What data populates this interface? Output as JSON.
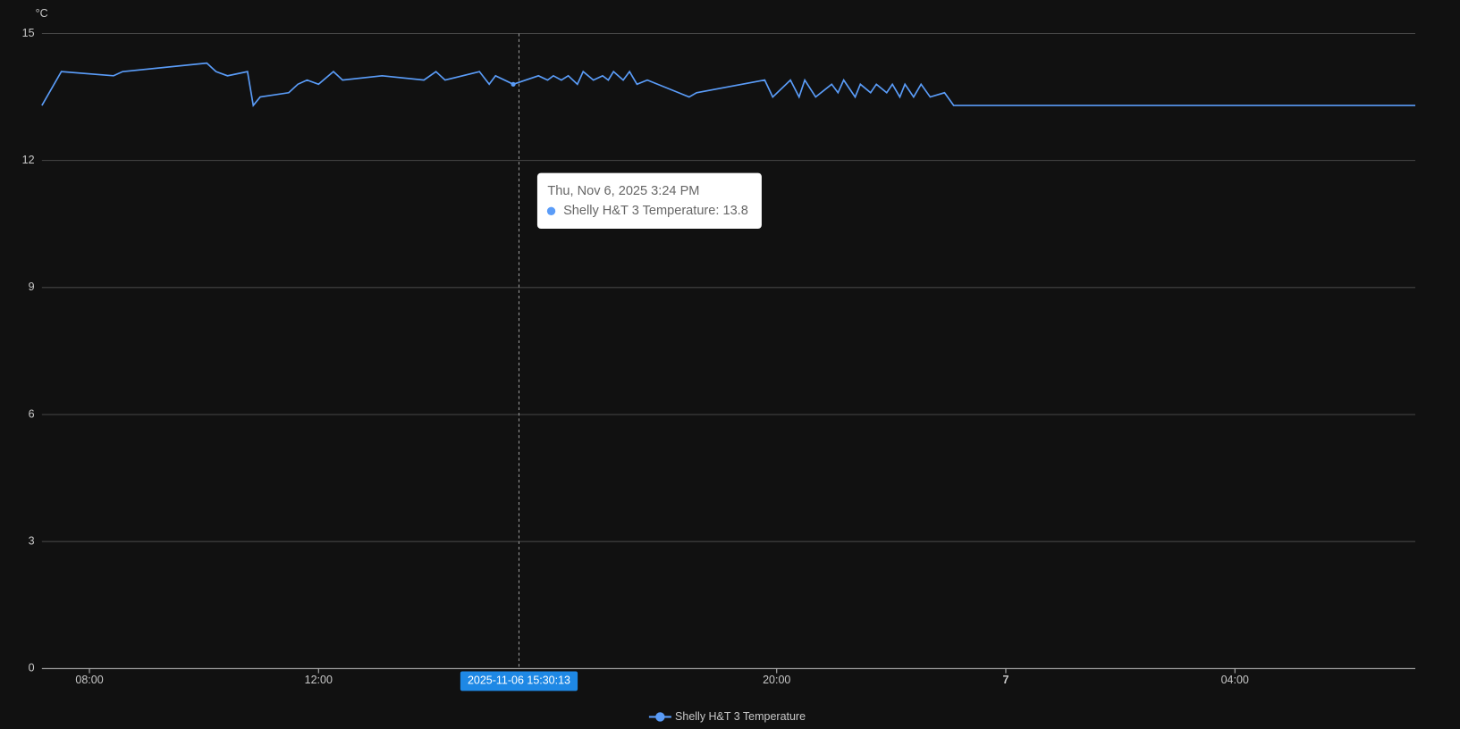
{
  "chart_data": {
    "type": "line",
    "y_unit": "°C",
    "x": [
      7.17,
      7.51,
      8.42,
      8.58,
      10.05,
      10.21,
      10.41,
      10.76,
      10.86,
      10.98,
      11.48,
      11.64,
      11.8,
      12.0,
      12.26,
      12.42,
      13.11,
      13.84,
      14.05,
      14.21,
      14.81,
      14.98,
      15.09,
      15.4,
      15.84,
      16.0,
      16.1,
      16.24,
      16.36,
      16.52,
      16.62,
      16.8,
      16.96,
      17.06,
      17.15,
      17.32,
      17.43,
      17.56,
      17.74,
      18.47,
      18.6,
      19.79,
      19.93,
      20.24,
      20.39,
      20.49,
      20.68,
      20.96,
      21.07,
      21.17,
      21.37,
      21.46,
      21.64,
      21.74,
      21.92,
      22.02,
      22.15,
      22.24,
      22.39,
      22.52,
      22.68,
      22.93,
      23.09,
      31.15
    ],
    "series": [
      {
        "name": "Shelly H&T 3 Temperature",
        "color": "#5a9cf8",
        "values": [
          13.3,
          14.1,
          14.0,
          14.1,
          14.3,
          14.1,
          14.0,
          14.1,
          13.3,
          13.5,
          13.6,
          13.8,
          13.9,
          13.8,
          14.1,
          13.9,
          14.0,
          13.9,
          14.1,
          13.9,
          14.1,
          13.8,
          14.0,
          13.8,
          14.0,
          13.9,
          14.0,
          13.9,
          14.0,
          13.8,
          14.1,
          13.9,
          14.0,
          13.9,
          14.1,
          13.9,
          14.1,
          13.8,
          13.9,
          13.5,
          13.6,
          13.9,
          13.5,
          13.9,
          13.5,
          13.9,
          13.5,
          13.8,
          13.6,
          13.9,
          13.5,
          13.8,
          13.6,
          13.8,
          13.6,
          13.8,
          13.5,
          13.8,
          13.5,
          13.8,
          13.5,
          13.6,
          13.3,
          13.3
        ]
      }
    ],
    "xlim": [
      7.17,
      31.15
    ],
    "xticks": [
      {
        "value": 8,
        "label": "08:00"
      },
      {
        "value": 12,
        "label": "12:00"
      },
      {
        "value": 20,
        "label": "20:00"
      },
      {
        "value": 24,
        "label": "7"
      },
      {
        "value": 28,
        "label": "04:00"
      }
    ],
    "ylim": [
      0,
      15
    ],
    "yticks": [
      0,
      3,
      6,
      9,
      12,
      15
    ],
    "grid": true,
    "legend": "bottom",
    "hover_index": 23,
    "axis_pointer": {
      "value": 15.5,
      "label": "2025-11-06 15:30:13"
    },
    "tooltip": {
      "title": "Thu, Nov 6, 2025 3:24 PM",
      "text": "Shelly H&T 3 Temperature: 13.8"
    }
  }
}
